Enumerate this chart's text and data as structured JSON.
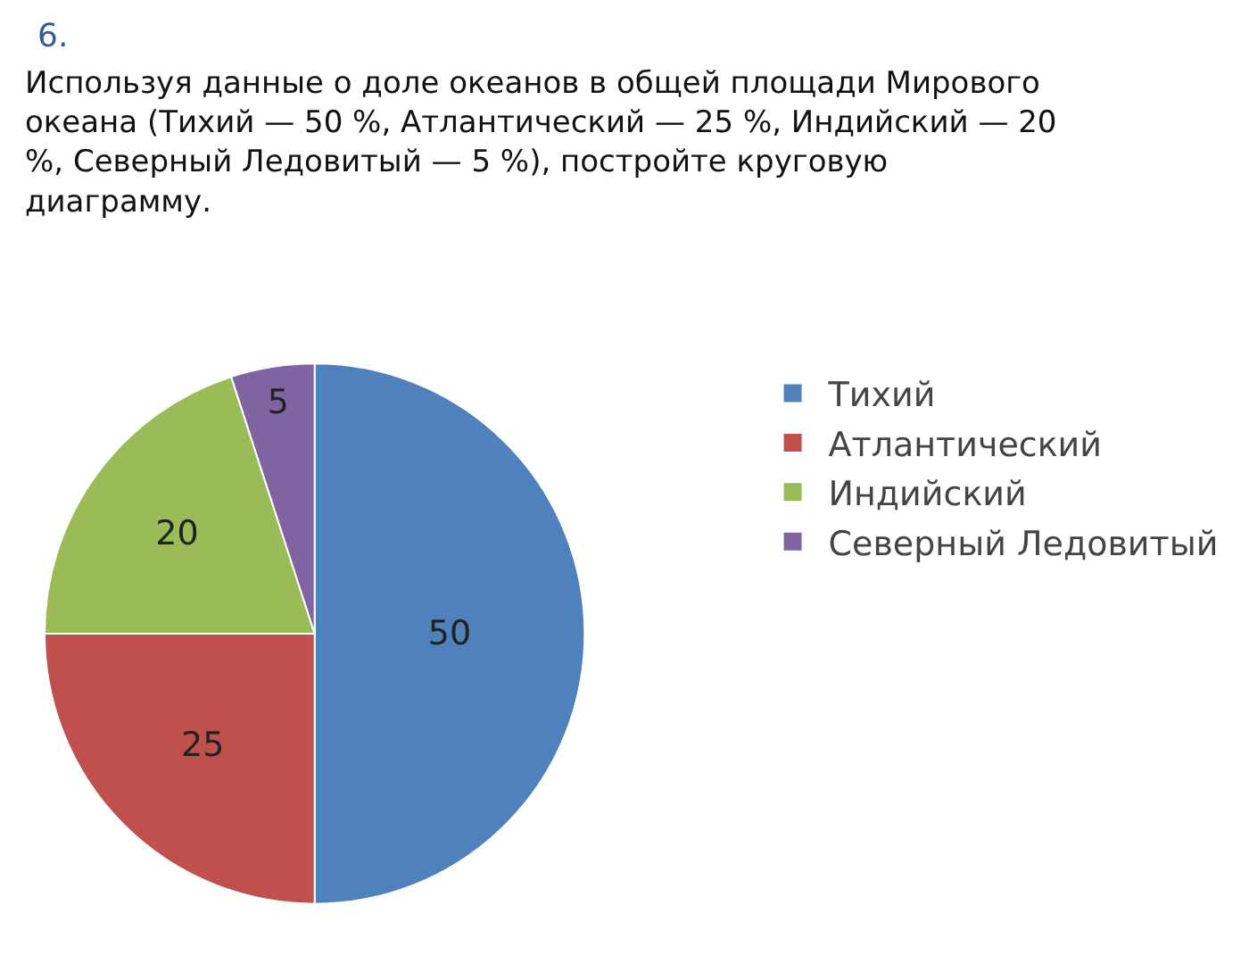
{
  "chart_data": {
    "type": "pie",
    "title": "6.",
    "subtitle": "Используя данные о доле океанов в общей площади Мирового океана (Тихий — 50 %, Атлантический — 25 %, Индийский — 20 %, Северный Ледовитый — 5 %), постройте круговую диаграмму.",
    "categories": [
      "Тихий",
      "Атлантический",
      "Индийский",
      "Северный Ледовитый"
    ],
    "values": [
      50,
      25,
      20,
      5
    ],
    "colors": [
      "#4f81bd",
      "#c0504d",
      "#9bbb59",
      "#8064a2"
    ],
    "data_labels": true,
    "legend": "right"
  }
}
